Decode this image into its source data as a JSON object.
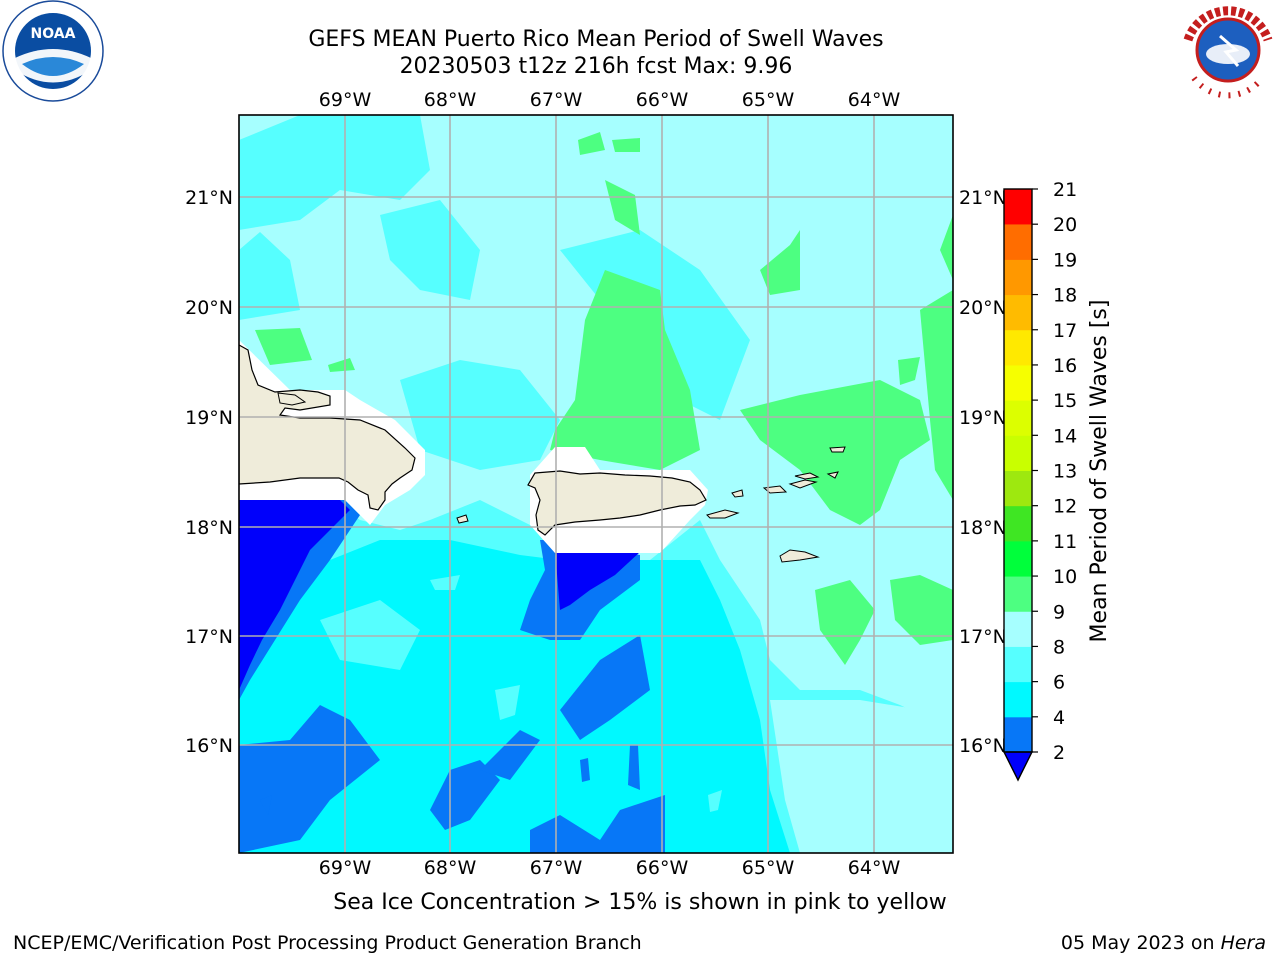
{
  "title": {
    "line1": "GEFS MEAN Puerto Rico Mean Period of Swell Waves",
    "line2": "20230503 t12z 216h fcst   Max: 9.96"
  },
  "map": {
    "lon_labels": [
      "69°W",
      "68°W",
      "67°W",
      "66°W",
      "65°W",
      "64°W"
    ],
    "lat_labels": [
      "21°N",
      "20°N",
      "19°N",
      "18°N",
      "17°N",
      "16°N"
    ],
    "colors": {
      "land": "#efecda",
      "ocean_base": "#56ffff",
      "band_2_4": "#0777f7",
      "band_below_2": "#0000fb",
      "band_4_6": "#00f9ff",
      "band_8_9": "#a6ffff",
      "band_9_10": "#4dff81"
    }
  },
  "colorbar": {
    "label": "Mean Period of Swell Waves [s]",
    "ticks": [
      "2",
      "4",
      "6",
      "8",
      "9",
      "10",
      "11",
      "12",
      "13",
      "14",
      "15",
      "16",
      "17",
      "18",
      "19",
      "20",
      "21"
    ],
    "colors": [
      "#0777f7",
      "#00f9ff",
      "#56ffff",
      "#a6ffff",
      "#4dff81",
      "#00ff3b",
      "#3fe623",
      "#9ee80f",
      "#c9ff00",
      "#dcff00",
      "#f6ff00",
      "#ffe900",
      "#ffbb00",
      "#ff9800",
      "#ff6d00",
      "#ff3700",
      "#ff0000"
    ],
    "under_color": "#0000fb"
  },
  "footer": {
    "note": "Sea Ice Concentration > 15% is shown in pink to yellow",
    "left": "NCEP/EMC/Verification Post Processing Product Generation Branch",
    "right_date": "05 May 2023 on",
    "right_machine": "Hera"
  }
}
